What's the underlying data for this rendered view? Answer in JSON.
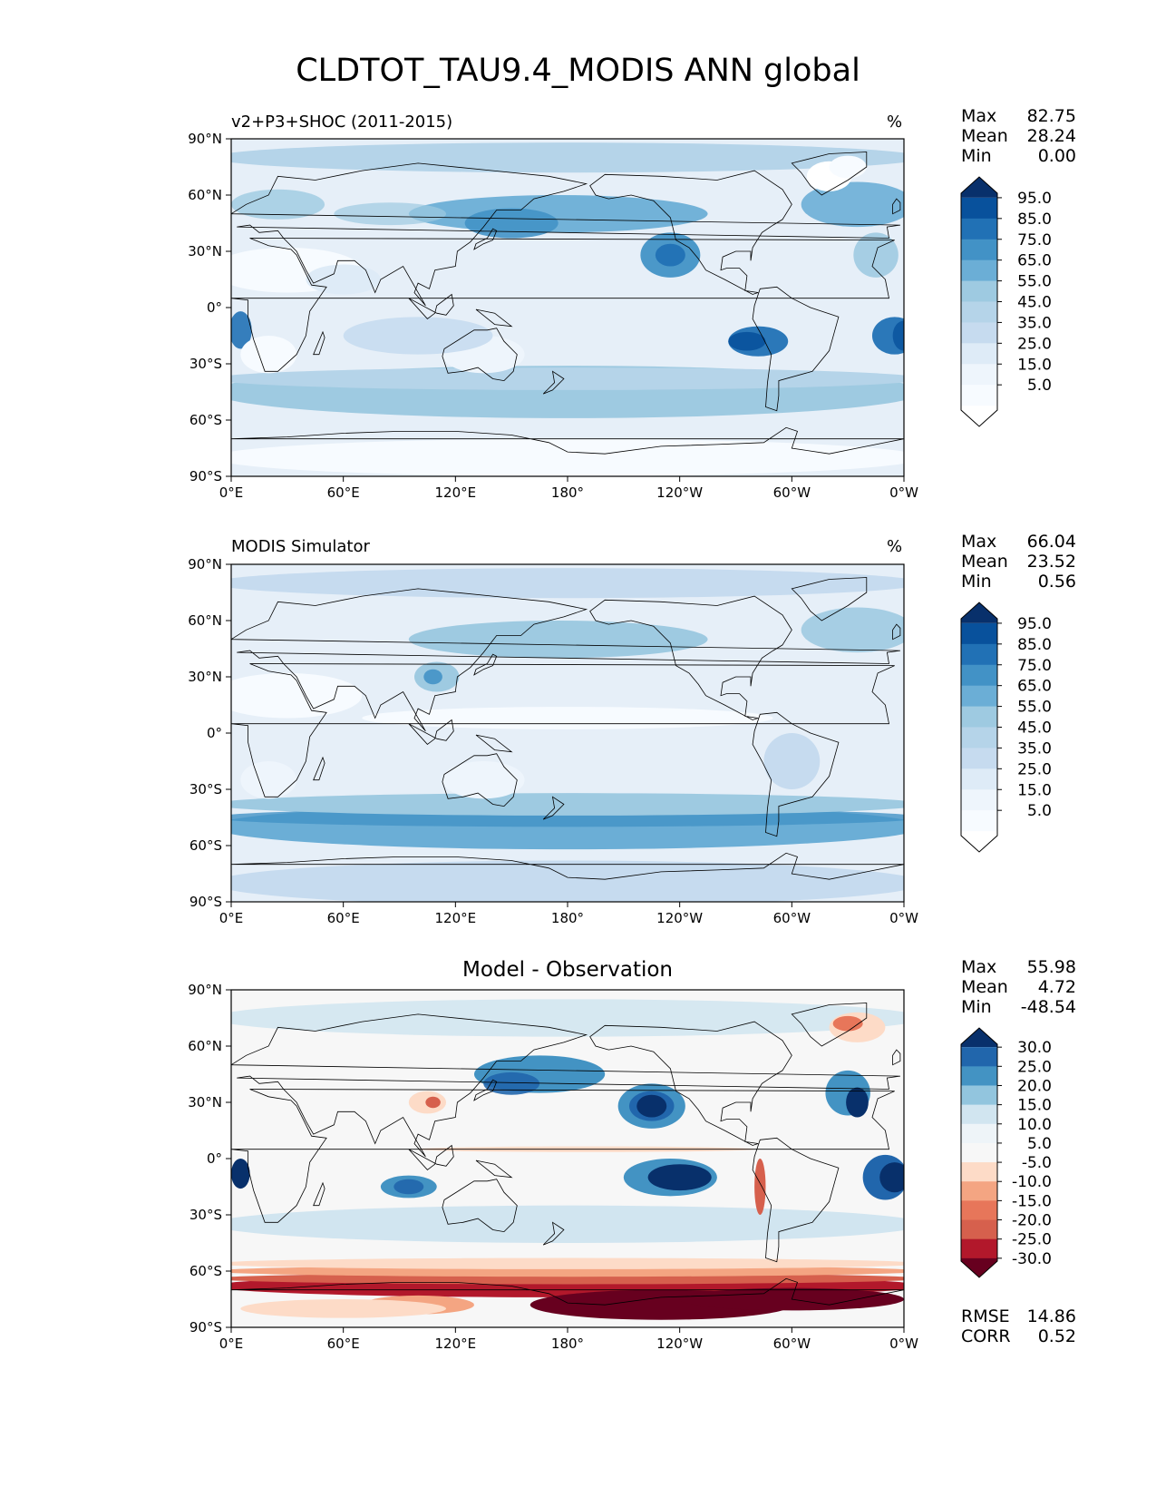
{
  "title": "CLDTOT_TAU9.4_MODIS ANN global",
  "axes": {
    "lat_ticks": [
      "90°N",
      "60°N",
      "30°N",
      "0°",
      "30°S",
      "60°S",
      "90°S"
    ],
    "lon_ticks": [
      "0°E",
      "60°E",
      "120°E",
      "180°",
      "120°W",
      "60°W",
      "0°W"
    ]
  },
  "panels": [
    {
      "id": "model",
      "label_left": "v2+P3+SHOC (2011-2015)",
      "units": "%",
      "label_centered": "",
      "stats": [
        {
          "key": "Max",
          "value": "82.75"
        },
        {
          "key": "Mean",
          "value": "28.24"
        },
        {
          "key": "Min",
          "value": "0.00"
        }
      ],
      "colorbar": {
        "labels": [
          "95.0",
          "85.0",
          "75.0",
          "65.0",
          "55.0",
          "45.0",
          "35.0",
          "25.0",
          "15.0",
          "5.0"
        ],
        "colors": [
          "#08306b",
          "#08519c",
          "#2171b5",
          "#4292c6",
          "#6baed6",
          "#9ecae1",
          "#b5d4e9",
          "#c6dbef",
          "#deebf7",
          "#eef5fc",
          "#f7fbff",
          "#ffffff"
        ]
      }
    },
    {
      "id": "obs",
      "label_left": "MODIS Simulator",
      "units": "%",
      "label_centered": "",
      "stats": [
        {
          "key": "Max",
          "value": "66.04"
        },
        {
          "key": "Mean",
          "value": "23.52"
        },
        {
          "key": "Min",
          "value": "0.56"
        }
      ],
      "colorbar": {
        "labels": [
          "95.0",
          "85.0",
          "75.0",
          "65.0",
          "55.0",
          "45.0",
          "35.0",
          "25.0",
          "15.0",
          "5.0"
        ],
        "colors": [
          "#08306b",
          "#08519c",
          "#2171b5",
          "#4292c6",
          "#6baed6",
          "#9ecae1",
          "#b5d4e9",
          "#c6dbef",
          "#deebf7",
          "#eef5fc",
          "#f7fbff",
          "#ffffff"
        ]
      }
    },
    {
      "id": "diff",
      "label_left": "",
      "units": "",
      "label_centered": "Model - Observation",
      "stats": [
        {
          "key": "Max",
          "value": "55.98"
        },
        {
          "key": "Mean",
          "value": "4.72"
        },
        {
          "key": "Min",
          "value": "-48.54"
        }
      ],
      "extra_stats": [
        {
          "key": "RMSE",
          "value": "14.86"
        },
        {
          "key": "CORR",
          "value": "0.52"
        }
      ],
      "colorbar": {
        "labels": [
          "30.0",
          "25.0",
          "20.0",
          "15.0",
          "10.0",
          "5.0",
          "-5.0",
          "-10.0",
          "-15.0",
          "-20.0",
          "-25.0",
          "-30.0"
        ],
        "colors": [
          "#08306b",
          "#2166ac",
          "#4393c3",
          "#92c5de",
          "#d1e5f0",
          "#eef4f8",
          "#f7f7f7",
          "#fddbc7",
          "#f4a582",
          "#e7765a",
          "#d6604d",
          "#b2182b",
          "#67001f"
        ]
      }
    }
  ]
}
